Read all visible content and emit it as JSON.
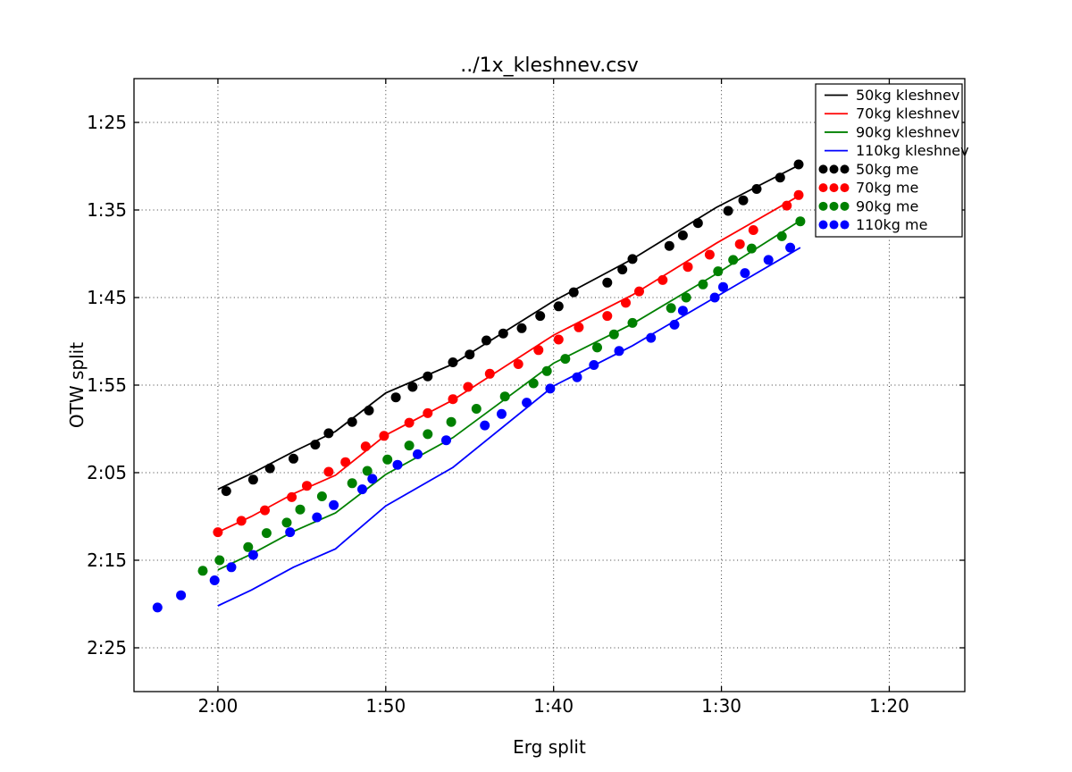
{
  "chart_data": {
    "type": "line+scatter",
    "title": "../1x_kleshnev.csv",
    "xlabel": "Erg split",
    "ylabel": "OTW split",
    "units": "seconds per 500m (labels shown as m:ss)",
    "grid": true,
    "grid_style": "dotted",
    "legend_position": "upper right",
    "x_axis": {
      "inverted": true,
      "lim_seconds": [
        125.0,
        75.5
      ],
      "ticks": [
        {
          "label": "2:00",
          "seconds": 120
        },
        {
          "label": "1:50",
          "seconds": 110
        },
        {
          "label": "1:40",
          "seconds": 100
        },
        {
          "label": "1:30",
          "seconds": 90
        },
        {
          "label": "1:20",
          "seconds": 80
        }
      ]
    },
    "y_axis": {
      "inverted": true,
      "lim_seconds": [
        80.0,
        150.0
      ],
      "ticks": [
        {
          "label": "1:25",
          "seconds": 85
        },
        {
          "label": "1:35",
          "seconds": 95
        },
        {
          "label": "1:45",
          "seconds": 105
        },
        {
          "label": "1:55",
          "seconds": 115
        },
        {
          "label": "2:05",
          "seconds": 125
        },
        {
          "label": "2:15",
          "seconds": 135
        },
        {
          "label": "2:25",
          "seconds": 145
        }
      ]
    },
    "series": [
      {
        "name": "50kg kleshnev",
        "type": "line",
        "color": "#000000",
        "points": [
          [
            120,
            126.9
          ],
          [
            118,
            125.1
          ],
          [
            115.5,
            122.6
          ],
          [
            113,
            120.3
          ],
          [
            110,
            115.9
          ],
          [
            106,
            112.6
          ],
          [
            100,
            105.4
          ],
          [
            95.3,
            100.6
          ],
          [
            90.3,
            94.7
          ],
          [
            85.3,
            89.8
          ]
        ]
      },
      {
        "name": "70kg kleshnev",
        "type": "line",
        "color": "#ff0000",
        "points": [
          [
            120,
            131.8
          ],
          [
            118,
            130.0
          ],
          [
            115.5,
            127.4
          ],
          [
            113,
            125.3
          ],
          [
            110,
            120.7
          ],
          [
            106,
            116.7
          ],
          [
            100,
            109.3
          ],
          [
            95.3,
            104.7
          ],
          [
            90.3,
            98.8
          ],
          [
            85.3,
            93.3
          ]
        ]
      },
      {
        "name": "90kg kleshnev",
        "type": "line",
        "color": "#008000",
        "points": [
          [
            120,
            136.1
          ],
          [
            118,
            134.3
          ],
          [
            115.5,
            131.7
          ],
          [
            113,
            129.6
          ],
          [
            110,
            125.2
          ],
          [
            106,
            121.0
          ],
          [
            100,
            112.5
          ],
          [
            95.3,
            108.0
          ],
          [
            90.3,
            102.3
          ],
          [
            85.3,
            96.2
          ]
        ]
      },
      {
        "name": "110kg kleshnev",
        "type": "line",
        "color": "#0000ff",
        "points": [
          [
            120,
            140.2
          ],
          [
            118,
            138.4
          ],
          [
            115.5,
            135.8
          ],
          [
            113,
            133.7
          ],
          [
            110,
            128.8
          ],
          [
            106,
            124.4
          ],
          [
            100,
            115.1
          ],
          [
            95.3,
            110.5
          ],
          [
            90.3,
            104.9
          ],
          [
            85.3,
            99.3
          ]
        ]
      },
      {
        "name": "50kg me",
        "type": "scatter",
        "color": "#000000",
        "points": [
          [
            119.5,
            127.1
          ],
          [
            117.9,
            125.8
          ],
          [
            116.9,
            124.5
          ],
          [
            115.5,
            123.4
          ],
          [
            114.2,
            121.8
          ],
          [
            113.4,
            120.5
          ],
          [
            112.0,
            119.2
          ],
          [
            111.0,
            117.9
          ],
          [
            109.4,
            116.4
          ],
          [
            108.4,
            115.2
          ],
          [
            107.5,
            114.0
          ],
          [
            106.0,
            112.4
          ],
          [
            105.0,
            111.5
          ],
          [
            104.0,
            109.9
          ],
          [
            103.0,
            109.1
          ],
          [
            101.9,
            108.5
          ],
          [
            100.8,
            107.1
          ],
          [
            99.7,
            106.0
          ],
          [
            98.8,
            104.4
          ],
          [
            96.8,
            103.3
          ],
          [
            95.9,
            101.8
          ],
          [
            95.3,
            100.6
          ],
          [
            93.1,
            99.1
          ],
          [
            92.3,
            97.9
          ],
          [
            91.4,
            96.5
          ],
          [
            89.6,
            95.1
          ],
          [
            88.7,
            93.9
          ],
          [
            87.9,
            92.6
          ],
          [
            86.5,
            91.3
          ],
          [
            85.4,
            89.8
          ]
        ]
      },
      {
        "name": "70kg me",
        "type": "scatter",
        "color": "#ff0000",
        "points": [
          [
            120.0,
            131.8
          ],
          [
            118.6,
            130.5
          ],
          [
            117.2,
            129.3
          ],
          [
            115.6,
            127.8
          ],
          [
            114.7,
            126.5
          ],
          [
            113.4,
            124.9
          ],
          [
            112.4,
            123.8
          ],
          [
            111.2,
            122.0
          ],
          [
            110.1,
            120.8
          ],
          [
            108.6,
            119.3
          ],
          [
            107.5,
            118.2
          ],
          [
            106.0,
            116.6
          ],
          [
            105.1,
            115.2
          ],
          [
            103.8,
            113.7
          ],
          [
            102.1,
            112.6
          ],
          [
            100.9,
            111.0
          ],
          [
            99.7,
            109.8
          ],
          [
            98.5,
            108.4
          ],
          [
            96.8,
            107.1
          ],
          [
            95.7,
            105.6
          ],
          [
            94.9,
            104.3
          ],
          [
            93.5,
            103.0
          ],
          [
            92.0,
            101.5
          ],
          [
            90.7,
            100.1
          ],
          [
            88.9,
            98.9
          ],
          [
            88.1,
            97.3
          ],
          [
            86.1,
            94.5
          ],
          [
            85.4,
            93.3
          ]
        ]
      },
      {
        "name": "90kg me",
        "type": "scatter",
        "color": "#008000",
        "points": [
          [
            120.9,
            136.2
          ],
          [
            119.9,
            135.0
          ],
          [
            118.2,
            133.5
          ],
          [
            117.1,
            131.9
          ],
          [
            115.9,
            130.7
          ],
          [
            115.1,
            129.2
          ],
          [
            113.8,
            127.7
          ],
          [
            112.0,
            126.2
          ],
          [
            111.1,
            124.8
          ],
          [
            109.9,
            123.5
          ],
          [
            108.6,
            121.9
          ],
          [
            107.5,
            120.6
          ],
          [
            106.1,
            119.2
          ],
          [
            104.6,
            117.7
          ],
          [
            102.9,
            116.3
          ],
          [
            101.2,
            114.8
          ],
          [
            100.4,
            113.4
          ],
          [
            99.3,
            112.0
          ],
          [
            97.4,
            110.7
          ],
          [
            96.4,
            109.2
          ],
          [
            95.3,
            107.9
          ],
          [
            93.0,
            106.2
          ],
          [
            92.1,
            105.0
          ],
          [
            91.1,
            103.5
          ],
          [
            90.2,
            102.0
          ],
          [
            89.3,
            100.7
          ],
          [
            88.2,
            99.4
          ],
          [
            86.4,
            98.0
          ],
          [
            85.3,
            96.3
          ]
        ]
      },
      {
        "name": "110kg me",
        "type": "scatter",
        "color": "#0000ff",
        "points": [
          [
            123.6,
            140.4
          ],
          [
            122.2,
            139.0
          ],
          [
            120.2,
            137.3
          ],
          [
            119.2,
            135.8
          ],
          [
            117.9,
            134.4
          ],
          [
            115.7,
            131.8
          ],
          [
            114.1,
            130.1
          ],
          [
            113.1,
            128.7
          ],
          [
            111.4,
            126.9
          ],
          [
            110.8,
            125.7
          ],
          [
            109.3,
            124.1
          ],
          [
            108.1,
            122.9
          ],
          [
            106.4,
            121.3
          ],
          [
            104.1,
            119.6
          ],
          [
            103.1,
            118.3
          ],
          [
            101.6,
            117.0
          ],
          [
            100.2,
            115.4
          ],
          [
            98.6,
            114.1
          ],
          [
            97.6,
            112.7
          ],
          [
            96.1,
            111.1
          ],
          [
            94.2,
            109.6
          ],
          [
            92.8,
            108.1
          ],
          [
            92.3,
            106.5
          ],
          [
            90.4,
            105.0
          ],
          [
            89.9,
            103.8
          ],
          [
            88.6,
            102.2
          ],
          [
            87.2,
            100.7
          ],
          [
            85.9,
            99.3
          ]
        ]
      }
    ]
  }
}
